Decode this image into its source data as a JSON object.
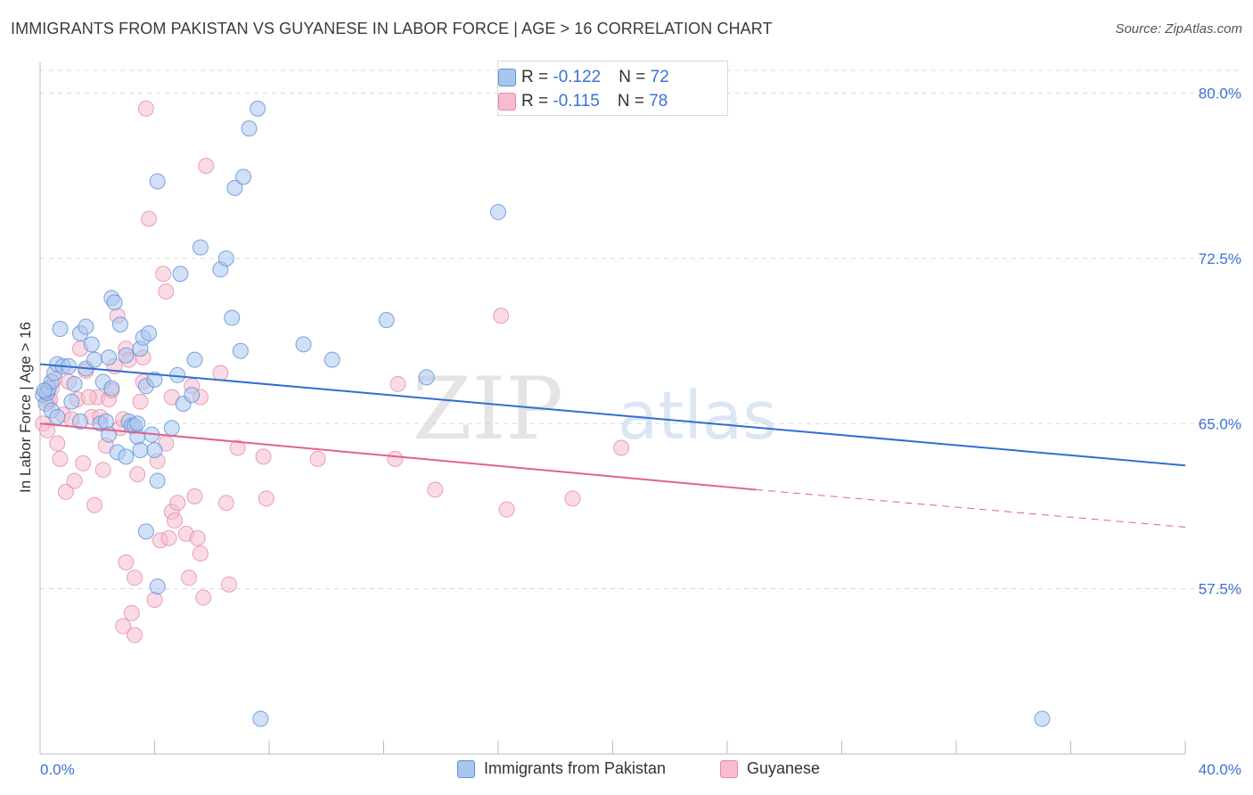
{
  "title": "IMMIGRANTS FROM PAKISTAN VS GUYANESE IN LABOR FORCE | AGE > 16 CORRELATION CHART",
  "source": "Source: ZipAtlas.com",
  "watermark": {
    "zip": "ZIP",
    "atlas": "atlas"
  },
  "colors": {
    "pakistan_fill": "#a9c6ee",
    "pakistan_stroke": "#5e8fd6",
    "pakistan_line": "#2f6fd0",
    "guyanese_fill": "#f6bdd0",
    "guyanese_stroke": "#e58aa9",
    "guyanese_line": "#e0628c",
    "axis_label": "#3b72d4",
    "grid": "#d8d8d8"
  },
  "stats_legend": [
    {
      "r_label": "R = ",
      "r_value": "-0.122",
      "n_label": "N = ",
      "n_value": "72"
    },
    {
      "r_label": "R = ",
      "r_value": "-0.115",
      "n_label": "N = ",
      "n_value": "78"
    }
  ],
  "bottom_legend": [
    "Immigrants from Pakistan",
    "Guyanese"
  ],
  "chart_data": {
    "type": "scatter",
    "title": "IMMIGRANTS FROM PAKISTAN VS GUYANESE IN LABOR FORCE | AGE > 16 CORRELATION CHART",
    "xlabel": "",
    "ylabel": "In Labor Force | Age > 16",
    "xlim": [
      0,
      40
    ],
    "ylim": [
      50,
      81.4
    ],
    "x_tick_labels": [
      "0.0%",
      "40.0%"
    ],
    "y_ticks": [
      57.5,
      65.0,
      72.5,
      80.0
    ],
    "y_tick_labels": [
      "57.5%",
      "65.0%",
      "72.5%",
      "80.0%"
    ],
    "grid": true,
    "series": [
      {
        "name": "Immigrants from Pakistan",
        "points": [
          [
            0.1,
            66.3
          ],
          [
            0.2,
            65.9
          ],
          [
            0.25,
            66.4
          ],
          [
            0.3,
            66.6
          ],
          [
            0.4,
            65.6
          ],
          [
            0.4,
            66.9
          ],
          [
            0.5,
            67.3
          ],
          [
            0.6,
            67.7
          ],
          [
            0.6,
            65.3
          ],
          [
            0.7,
            69.3
          ],
          [
            0.8,
            67.6
          ],
          [
            1.0,
            67.6
          ],
          [
            1.1,
            66.0
          ],
          [
            1.2,
            66.8
          ],
          [
            1.4,
            69.1
          ],
          [
            1.4,
            65.1
          ],
          [
            1.6,
            69.4
          ],
          [
            1.6,
            67.5
          ],
          [
            1.8,
            68.6
          ],
          [
            1.9,
            67.9
          ],
          [
            2.1,
            65.0
          ],
          [
            2.2,
            66.9
          ],
          [
            2.3,
            65.1
          ],
          [
            2.4,
            68.0
          ],
          [
            2.4,
            64.5
          ],
          [
            2.5,
            70.7
          ],
          [
            2.5,
            66.6
          ],
          [
            2.6,
            70.5
          ],
          [
            2.7,
            63.7
          ],
          [
            2.8,
            69.5
          ],
          [
            3.0,
            63.5
          ],
          [
            3.0,
            68.1
          ],
          [
            3.1,
            65.1
          ],
          [
            3.2,
            64.9
          ],
          [
            3.3,
            64.9
          ],
          [
            3.4,
            64.4
          ],
          [
            3.4,
            65.0
          ],
          [
            3.5,
            63.8
          ],
          [
            3.5,
            68.4
          ],
          [
            3.6,
            68.9
          ],
          [
            3.7,
            60.1
          ],
          [
            3.7,
            66.7
          ],
          [
            3.8,
            69.1
          ],
          [
            3.9,
            64.5
          ],
          [
            4.0,
            63.8
          ],
          [
            4.0,
            67.0
          ],
          [
            4.1,
            62.4
          ],
          [
            4.1,
            57.6
          ],
          [
            4.1,
            76.0
          ],
          [
            4.6,
            64.8
          ],
          [
            4.8,
            67.2
          ],
          [
            4.9,
            71.8
          ],
          [
            5.0,
            65.9
          ],
          [
            5.3,
            66.3
          ],
          [
            5.4,
            67.9
          ],
          [
            5.6,
            73.0
          ],
          [
            6.3,
            72.0
          ],
          [
            6.5,
            72.5
          ],
          [
            6.7,
            69.8
          ],
          [
            6.8,
            75.7
          ],
          [
            7.0,
            68.3
          ],
          [
            7.1,
            76.2
          ],
          [
            7.3,
            78.4
          ],
          [
            7.6,
            79.3
          ],
          [
            7.7,
            51.6
          ],
          [
            9.2,
            68.6
          ],
          [
            10.2,
            67.9
          ],
          [
            12.1,
            69.7
          ],
          [
            13.5,
            67.1
          ],
          [
            16.0,
            74.6
          ],
          [
            35.0,
            51.6
          ],
          [
            0.15,
            66.5
          ]
        ]
      },
      {
        "name": "Guyanese",
        "points": [
          [
            0.1,
            65.0
          ],
          [
            0.2,
            66.4
          ],
          [
            0.25,
            64.7
          ],
          [
            0.3,
            66.0
          ],
          [
            0.4,
            66.6
          ],
          [
            0.5,
            67.0
          ],
          [
            0.6,
            64.1
          ],
          [
            0.7,
            63.4
          ],
          [
            0.8,
            65.4
          ],
          [
            0.9,
            61.9
          ],
          [
            1.0,
            66.9
          ],
          [
            1.1,
            65.2
          ],
          [
            1.2,
            62.4
          ],
          [
            1.3,
            66.1
          ],
          [
            1.4,
            68.4
          ],
          [
            1.5,
            63.2
          ],
          [
            1.6,
            67.4
          ],
          [
            1.8,
            65.3
          ],
          [
            1.9,
            61.3
          ],
          [
            2.0,
            66.2
          ],
          [
            2.1,
            65.3
          ],
          [
            2.2,
            62.9
          ],
          [
            2.3,
            64.0
          ],
          [
            2.4,
            66.1
          ],
          [
            2.5,
            66.5
          ],
          [
            2.6,
            67.6
          ],
          [
            2.7,
            69.9
          ],
          [
            2.8,
            64.8
          ],
          [
            2.9,
            65.2
          ],
          [
            3.0,
            58.7
          ],
          [
            3.0,
            68.4
          ],
          [
            3.1,
            67.9
          ],
          [
            3.2,
            56.4
          ],
          [
            3.3,
            58.0
          ],
          [
            3.4,
            62.7
          ],
          [
            3.5,
            66.0
          ],
          [
            3.6,
            66.9
          ],
          [
            3.6,
            68.0
          ],
          [
            3.7,
            79.3
          ],
          [
            3.8,
            74.3
          ],
          [
            4.0,
            57.0
          ],
          [
            4.1,
            63.3
          ],
          [
            4.2,
            59.7
          ],
          [
            4.3,
            71.8
          ],
          [
            4.4,
            71.0
          ],
          [
            4.4,
            64.1
          ],
          [
            4.5,
            59.8
          ],
          [
            4.6,
            66.2
          ],
          [
            4.6,
            61.0
          ],
          [
            4.7,
            60.6
          ],
          [
            4.8,
            61.4
          ],
          [
            5.1,
            60.0
          ],
          [
            5.2,
            58.0
          ],
          [
            5.3,
            66.7
          ],
          [
            5.4,
            61.7
          ],
          [
            5.5,
            59.8
          ],
          [
            5.6,
            59.1
          ],
          [
            5.6,
            66.2
          ],
          [
            5.7,
            57.1
          ],
          [
            5.8,
            76.7
          ],
          [
            6.3,
            67.3
          ],
          [
            6.5,
            61.4
          ],
          [
            6.6,
            57.7
          ],
          [
            6.9,
            63.9
          ],
          [
            7.8,
            63.5
          ],
          [
            7.9,
            61.6
          ],
          [
            9.7,
            63.4
          ],
          [
            12.4,
            63.4
          ],
          [
            12.5,
            66.8
          ],
          [
            13.8,
            62.0
          ],
          [
            16.1,
            69.9
          ],
          [
            16.3,
            61.1
          ],
          [
            18.6,
            61.6
          ],
          [
            20.3,
            63.9
          ],
          [
            2.9,
            55.8
          ],
          [
            3.3,
            55.4
          ],
          [
            1.7,
            66.2
          ],
          [
            0.35,
            66.1
          ]
        ]
      }
    ],
    "trendlines": [
      {
        "series": "Immigrants from Pakistan",
        "x0": 0,
        "y0": 67.7,
        "x1": 40,
        "y1": 63.1,
        "style": "solid"
      },
      {
        "series": "Guyanese",
        "x0": 0,
        "y0": 65.0,
        "x1": 25,
        "y1": 62.0,
        "style": "solid"
      },
      {
        "series": "Guyanese",
        "x0": 25,
        "y0": 62.0,
        "x1": 40,
        "y1": 60.3,
        "style": "dashed"
      }
    ]
  }
}
